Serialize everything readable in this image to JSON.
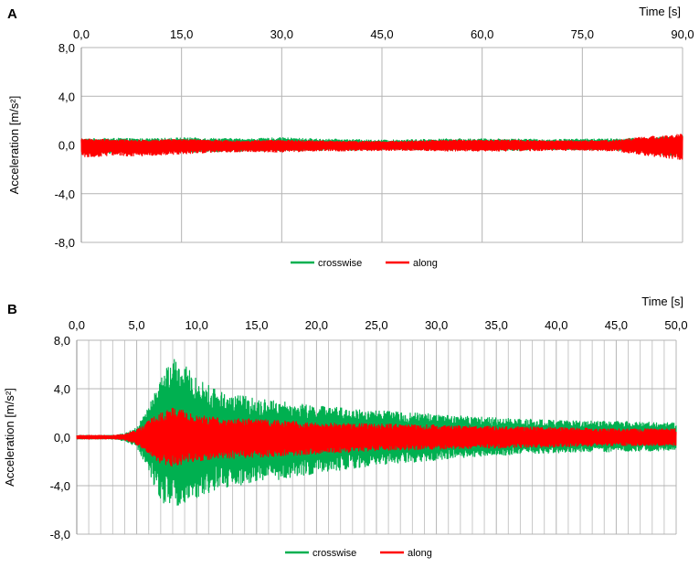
{
  "chart_data": [
    {
      "type": "line",
      "panel_label": "A",
      "xlabel": "Time  [s]",
      "ylabel": "Acceleration  [m/s²]",
      "xlim": [
        0,
        90
      ],
      "ylim": [
        -8,
        8
      ],
      "x_ticks": [
        "0,0",
        "15,0",
        "30,0",
        "45,0",
        "60,0",
        "75,0",
        "90,0"
      ],
      "x_tick_values": [
        0,
        15,
        30,
        45,
        60,
        75,
        90
      ],
      "y_ticks": [
        "8,0",
        "4,0",
        "0,0",
        "-4,0",
        "-8,0"
      ],
      "y_tick_values": [
        8,
        4,
        0,
        -4,
        -8
      ],
      "x_axis_position": "top",
      "grid": true,
      "legend": "bottom-center",
      "series": [
        {
          "name": "crosswise",
          "color": "#00b050",
          "envelope_x": [
            0,
            5,
            10,
            15,
            20,
            25,
            30,
            35,
            40,
            45,
            50,
            55,
            60,
            65,
            70,
            75,
            80,
            85,
            90
          ],
          "envelope_upper": [
            0.5,
            0.55,
            0.5,
            0.6,
            0.55,
            0.5,
            0.6,
            0.5,
            0.45,
            0.4,
            0.45,
            0.5,
            0.5,
            0.5,
            0.45,
            0.5,
            0.5,
            0.6,
            0.8
          ],
          "envelope_lower": [
            -0.7,
            -0.7,
            -0.65,
            -0.6,
            -0.55,
            -0.5,
            -0.5,
            -0.45,
            -0.45,
            -0.4,
            -0.4,
            -0.45,
            -0.4,
            -0.45,
            -0.4,
            -0.4,
            -0.45,
            -0.7,
            -1.0
          ]
        },
        {
          "name": "along",
          "color": "#ff0000",
          "envelope_x": [
            0,
            5,
            10,
            15,
            20,
            25,
            30,
            35,
            40,
            45,
            50,
            55,
            60,
            65,
            70,
            75,
            80,
            85,
            90
          ],
          "envelope_upper": [
            0.5,
            0.45,
            0.4,
            0.45,
            0.4,
            0.35,
            0.4,
            0.35,
            0.3,
            0.3,
            0.35,
            0.4,
            0.4,
            0.4,
            0.35,
            0.35,
            0.4,
            0.7,
            0.9
          ],
          "envelope_lower": [
            -1.0,
            -0.9,
            -0.9,
            -0.75,
            -0.6,
            -0.55,
            -0.6,
            -0.5,
            -0.5,
            -0.45,
            -0.45,
            -0.5,
            -0.5,
            -0.5,
            -0.45,
            -0.45,
            -0.5,
            -0.9,
            -1.2
          ]
        }
      ]
    },
    {
      "type": "line",
      "panel_label": "B",
      "xlabel": "Time  [s]",
      "ylabel": "Acceleration  [m/s²]",
      "xlim": [
        0,
        50
      ],
      "ylim": [
        -8,
        8
      ],
      "x_ticks": [
        "0,0",
        "5,0",
        "10,0",
        "15,0",
        "20,0",
        "25,0",
        "30,0",
        "35,0",
        "40,0",
        "45,0",
        "50,0"
      ],
      "x_tick_values": [
        0,
        5,
        10,
        15,
        20,
        25,
        30,
        35,
        40,
        45,
        50
      ],
      "y_ticks": [
        "8,0",
        "4,0",
        "0,0",
        "-4,0",
        "-8,0"
      ],
      "y_tick_values": [
        8,
        4,
        0,
        -4,
        -8
      ],
      "x_axis_position": "top",
      "grid": true,
      "legend": "bottom-center",
      "series": [
        {
          "name": "crosswise",
          "color": "#00b050",
          "envelope_x": [
            0,
            3,
            4,
            5,
            6,
            7,
            8,
            9,
            10,
            12,
            15,
            20,
            25,
            30,
            35,
            40,
            45,
            50
          ],
          "envelope_upper": [
            0.15,
            0.15,
            0.3,
            0.8,
            2.5,
            5.0,
            6.5,
            6.0,
            4.8,
            3.8,
            3.2,
            2.6,
            2.2,
            1.9,
            1.6,
            1.4,
            1.3,
            1.2
          ],
          "envelope_lower": [
            -0.15,
            -0.15,
            -0.3,
            -0.8,
            -2.8,
            -5.5,
            -5.8,
            -5.5,
            -5.0,
            -4.2,
            -3.8,
            -3.0,
            -2.3,
            -1.9,
            -1.5,
            -1.3,
            -1.2,
            -1.1
          ]
        },
        {
          "name": "along",
          "color": "#ff0000",
          "envelope_x": [
            0,
            3,
            4,
            5,
            6,
            7,
            8,
            9,
            10,
            12,
            15,
            20,
            25,
            30,
            35,
            40,
            45,
            50
          ],
          "envelope_upper": [
            0.15,
            0.15,
            0.25,
            0.6,
            1.4,
            2.0,
            2.4,
            2.2,
            1.8,
            1.6,
            1.5,
            1.2,
            1.1,
            1.0,
            0.9,
            0.8,
            0.7,
            0.7
          ],
          "envelope_lower": [
            -0.15,
            -0.15,
            -0.25,
            -0.6,
            -1.5,
            -2.2,
            -2.4,
            -2.2,
            -2.0,
            -1.8,
            -1.7,
            -1.4,
            -1.1,
            -1.0,
            -0.9,
            -0.8,
            -0.7,
            -0.7
          ]
        }
      ]
    }
  ]
}
